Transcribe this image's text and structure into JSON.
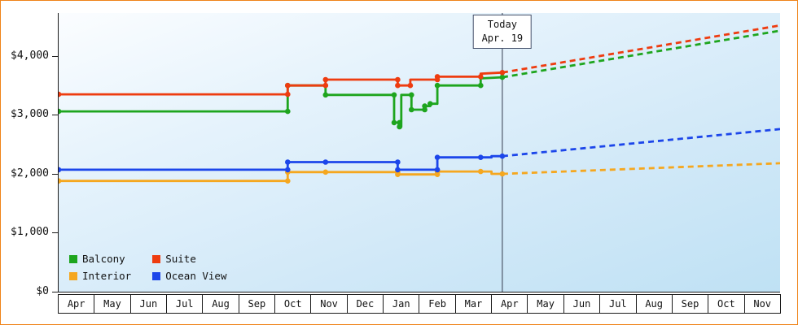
{
  "chart_data": {
    "type": "line",
    "title": "",
    "xlabel": "",
    "ylabel": "",
    "grid": false,
    "ylim": [
      0,
      4731
    ],
    "y_ticks": [
      {
        "label": "$0",
        "value": 0
      },
      {
        "label": "$1,000",
        "value": 1000
      },
      {
        "label": "$2,000",
        "value": 2000
      },
      {
        "label": "$3,000",
        "value": 3000
      },
      {
        "label": "$4,000",
        "value": 4000
      }
    ],
    "x_tick_labels": [
      "Apr",
      "May",
      "Jun",
      "Jul",
      "Aug",
      "Sep",
      "Oct",
      "Nov",
      "Dec",
      "Jan",
      "Feb",
      "Mar",
      "Apr",
      "May",
      "Jun",
      "Jul",
      "Aug",
      "Sep",
      "Oct",
      "Nov"
    ],
    "today": {
      "label_line1": "Today",
      "label_line2": "Apr. 19",
      "month_index": 12.3
    },
    "legend": {
      "position": "bottom-left",
      "items": [
        {
          "name": "Balcony",
          "color": "#1ea51e"
        },
        {
          "name": "Suite",
          "color": "#ee3c10"
        },
        {
          "name": "Interior",
          "color": "#f5a71f"
        },
        {
          "name": "Ocean View",
          "color": "#1c46ea"
        }
      ]
    },
    "series": [
      {
        "name": "Interior",
        "color": "#f5a71f",
        "points": [
          [
            0,
            1880,
            1
          ],
          [
            6.35,
            1880,
            1
          ],
          [
            6.35,
            2030,
            1
          ],
          [
            7.4,
            2030,
            1
          ],
          [
            9.4,
            2030,
            1
          ],
          [
            9.4,
            1990,
            1
          ],
          [
            10.5,
            1990,
            1
          ],
          [
            10.5,
            2040,
            1
          ],
          [
            11.7,
            2040,
            1
          ],
          [
            12.0,
            2040,
            0
          ],
          [
            12.0,
            2000,
            0
          ],
          [
            12.3,
            2000,
            1
          ]
        ],
        "projection": [
          [
            12.3,
            2000
          ],
          [
            20,
            2180
          ]
        ]
      },
      {
        "name": "Ocean View",
        "color": "#1c46ea",
        "points": [
          [
            0,
            2070,
            1
          ],
          [
            6.35,
            2070,
            1
          ],
          [
            6.35,
            2200,
            1
          ],
          [
            7.4,
            2200,
            1
          ],
          [
            9.4,
            2200,
            1
          ],
          [
            9.4,
            2070,
            1
          ],
          [
            10.5,
            2070,
            1
          ],
          [
            10.5,
            2280,
            1
          ],
          [
            11.7,
            2280,
            1
          ],
          [
            12.0,
            2280,
            0
          ],
          [
            12.0,
            2300,
            0
          ],
          [
            12.3,
            2300,
            1
          ]
        ],
        "projection": [
          [
            12.3,
            2300
          ],
          [
            20,
            2760
          ]
        ]
      },
      {
        "name": "Balcony",
        "color": "#1ea51e",
        "points": [
          [
            0,
            3060,
            1
          ],
          [
            6.35,
            3060,
            1
          ],
          [
            6.35,
            3500,
            1
          ],
          [
            7.4,
            3500,
            0
          ],
          [
            7.4,
            3340,
            1
          ],
          [
            9.3,
            3340,
            1
          ],
          [
            9.3,
            2870,
            1
          ],
          [
            9.45,
            2870,
            1
          ],
          [
            9.45,
            2800,
            1
          ],
          [
            9.5,
            2800,
            0
          ],
          [
            9.5,
            3340,
            0
          ],
          [
            9.78,
            3340,
            1
          ],
          [
            9.78,
            3090,
            1
          ],
          [
            10.15,
            3090,
            1
          ],
          [
            10.15,
            3150,
            1
          ],
          [
            10.3,
            3150,
            0
          ],
          [
            10.3,
            3190,
            1
          ],
          [
            10.5,
            3190,
            0
          ],
          [
            10.5,
            3500,
            1
          ],
          [
            11.7,
            3500,
            1
          ],
          [
            11.7,
            3620,
            0
          ],
          [
            12.3,
            3640,
            1
          ]
        ],
        "projection": [
          [
            12.3,
            3640
          ],
          [
            20,
            4430
          ]
        ]
      },
      {
        "name": "Suite",
        "color": "#ee3c10",
        "points": [
          [
            0,
            3350,
            1
          ],
          [
            6.35,
            3350,
            1
          ],
          [
            6.35,
            3500,
            1
          ],
          [
            7.4,
            3500,
            1
          ],
          [
            7.4,
            3600,
            1
          ],
          [
            9.4,
            3600,
            1
          ],
          [
            9.4,
            3500,
            1
          ],
          [
            9.75,
            3500,
            1
          ],
          [
            9.75,
            3600,
            0
          ],
          [
            10.5,
            3600,
            1
          ],
          [
            10.5,
            3650,
            1
          ],
          [
            11.7,
            3650,
            1
          ],
          [
            11.7,
            3700,
            0
          ],
          [
            12.3,
            3720,
            1
          ]
        ],
        "projection": [
          [
            12.3,
            3720
          ],
          [
            20,
            4520
          ]
        ]
      }
    ]
  }
}
